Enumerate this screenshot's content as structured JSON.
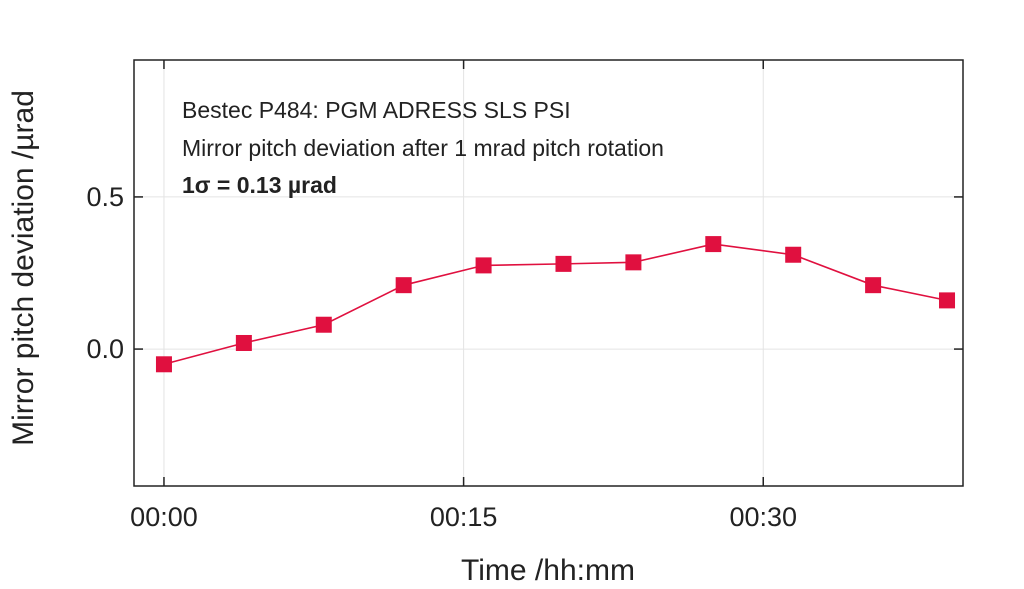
{
  "chart_data": {
    "type": "line",
    "xlabel": "Time /hh:mm",
    "ylabel": "Mirror pitch deviation /µrad",
    "xlim": [
      -1.5,
      40
    ],
    "ylim": [
      -0.45,
      0.95
    ],
    "x_ticks": [
      0,
      15,
      30
    ],
    "x_tick_labels": [
      "00:00",
      "00:15",
      "00:30"
    ],
    "y_ticks": [
      0.0,
      0.5
    ],
    "y_tick_labels": [
      "0.0",
      "0.5"
    ],
    "grid": true,
    "annotations": [
      "Bestec P484: PGM ADRESS SLS PSI",
      "Mirror pitch deviation after 1 mrad pitch rotation",
      "1σ = 0.13 µrad"
    ],
    "series": [
      {
        "color": "#e0103f",
        "marker": "square",
        "x": [
          0,
          4,
          8,
          12,
          16,
          20,
          23.5,
          27.5,
          31.5,
          35.5,
          39.2
        ],
        "y": [
          -0.05,
          0.02,
          0.08,
          0.21,
          0.275,
          0.28,
          0.285,
          0.345,
          0.31,
          0.21,
          0.16
        ]
      }
    ]
  }
}
